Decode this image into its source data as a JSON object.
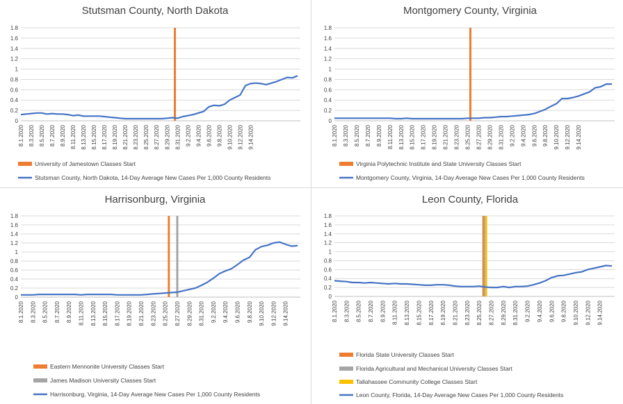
{
  "colors": {
    "line": "#4472C4",
    "orange": "#ED7D31",
    "gray": "#A5A5A5",
    "yellow": "#FFC000",
    "grid": "#d9d9d9"
  },
  "chart_data": [
    {
      "type": "line",
      "title": "Stutsman County, North Dakota",
      "ylim": [
        0,
        1.8
      ],
      "yticks": [
        "0",
        "0.2",
        "0.4",
        "0.6",
        "0.8",
        "1",
        "1.2",
        "1.4",
        "1.6",
        "1.8"
      ],
      "x_tick_labels": [
        "8.1.2020",
        "8.3.2020",
        "8.5.2020",
        "8.7.2020",
        "8.9.2020",
        "8.11.2020",
        "8.13.2020",
        "8.15.2020",
        "8.17.2020",
        "8.19.2020",
        "8.21.2020",
        "8.23.2020",
        "8.25.2020",
        "8.27.2020",
        "8.29.2020",
        "8.31.2020",
        "9.2.2020",
        "9.4.2020",
        "9.6.2020",
        "9.8.2020",
        "9.10.2020",
        "9.12.2020",
        "9.14.2020"
      ],
      "series": [
        {
          "name": "Stutsman County, North Dakota, 14-Day Average New Cases Per 1,000 County Residents",
          "values": [
            0.12,
            0.13,
            0.14,
            0.15,
            0.15,
            0.13,
            0.14,
            0.13,
            0.13,
            0.12,
            0.1,
            0.11,
            0.09,
            0.09,
            0.09,
            0.09,
            0.08,
            0.07,
            0.06,
            0.05,
            0.04,
            0.04,
            0.04,
            0.04,
            0.04,
            0.04,
            0.04,
            0.04,
            0.05,
            0.06,
            0.05,
            0.08,
            0.1,
            0.12,
            0.15,
            0.18,
            0.27,
            0.3,
            0.29,
            0.32,
            0.4,
            0.45,
            0.5,
            0.68,
            0.72,
            0.73,
            0.72,
            0.7,
            0.73,
            0.76,
            0.8,
            0.84,
            0.83,
            0.87
          ]
        }
      ],
      "events": [
        {
          "name": "University of Jamestown Classes Start",
          "x_index": 29.5,
          "color": "#ED7D31"
        }
      ]
    },
    {
      "type": "line",
      "title": "Montgomery County, Virginia",
      "ylim": [
        0,
        1.8
      ],
      "yticks": [
        "0",
        "0.2",
        "0.4",
        "0.6",
        "0.8",
        "1",
        "1.2",
        "1.4",
        "1.6",
        "1.8"
      ],
      "x_tick_labels": [
        "8.1.2020",
        "8.3.2020",
        "8.5.2020",
        "8.7.2020",
        "8.9.2020",
        "8.11.2020",
        "8.13.2020",
        "8.15.2020",
        "8.17.2020",
        "8.19.2020",
        "8.21.2020",
        "8.23.2020",
        "8.25.2020",
        "8.27.2020",
        "8.29.2020",
        "8.31.2020",
        "9.2.2020",
        "9.4.2020",
        "9.6.2020",
        "9.8.2020",
        "9.10.2020",
        "9.12.2020",
        "9.14.2020"
      ],
      "series": [
        {
          "name": "Montgomery County, Virginia, 14-Day Average New Cases Per 1,000 County Residents",
          "values": [
            0.05,
            0.05,
            0.05,
            0.05,
            0.05,
            0.05,
            0.05,
            0.05,
            0.05,
            0.05,
            0.05,
            0.04,
            0.04,
            0.05,
            0.04,
            0.04,
            0.04,
            0.04,
            0.04,
            0.04,
            0.04,
            0.04,
            0.04,
            0.04,
            0.05,
            0.05,
            0.05,
            0.06,
            0.06,
            0.07,
            0.08,
            0.08,
            0.09,
            0.1,
            0.11,
            0.12,
            0.14,
            0.18,
            0.22,
            0.28,
            0.33,
            0.43,
            0.43,
            0.45,
            0.48,
            0.52,
            0.56,
            0.64,
            0.66,
            0.71,
            0.71
          ]
        }
      ],
      "events": [
        {
          "name": "Virginia Polytechnic Institute and State University Classes Start",
          "x_index": 24.5,
          "color": "#ED7D31"
        }
      ]
    },
    {
      "type": "line",
      "title": "Harrisonburg, Virginia",
      "ylim": [
        0,
        1.8
      ],
      "yticks": [
        "0",
        "0.2",
        "0.4",
        "0.6",
        "0.8",
        "1",
        "1.2",
        "1.4",
        "1.6",
        "1.8"
      ],
      "x_tick_labels": [
        "8.1.2020",
        "8.3.2020",
        "8.5.2020",
        "8.7.2020",
        "8.9.2020",
        "8.11.2020",
        "8.13.2020",
        "8.15.2020",
        "8.17.2020",
        "8.19.2020",
        "8.21.2020",
        "8.23.2020",
        "8.25.2020",
        "8.27.2020",
        "8.29.2020",
        "8.31.2020",
        "9.2.2020",
        "9.4.2020",
        "9.6.2020",
        "9.8.2020",
        "9.10.2020",
        "9.12.2020",
        "9.14.2020"
      ],
      "series": [
        {
          "name": "Harrisonburg, Virginia, 14-Day Average New Cases Per 1,000 County Residents",
          "values": [
            0.05,
            0.05,
            0.05,
            0.06,
            0.06,
            0.06,
            0.06,
            0.06,
            0.06,
            0.06,
            0.05,
            0.06,
            0.06,
            0.06,
            0.06,
            0.06,
            0.05,
            0.05,
            0.05,
            0.05,
            0.05,
            0.06,
            0.07,
            0.08,
            0.09,
            0.1,
            0.11,
            0.14,
            0.17,
            0.2,
            0.26,
            0.33,
            0.42,
            0.52,
            0.58,
            0.63,
            0.72,
            0.82,
            0.88,
            1.05,
            1.12,
            1.15,
            1.2,
            1.22,
            1.17,
            1.13,
            1.14
          ]
        }
      ],
      "events": [
        {
          "name": "Eastern Mennonite University Classes Start",
          "x_index": 24.6,
          "color": "#ED7D31"
        },
        {
          "name": "James Madison University Classes Start",
          "x_index": 26.0,
          "color": "#A5A5A5"
        }
      ]
    },
    {
      "type": "line",
      "title": "Leon County, Florida",
      "ylim": [
        0,
        1.8
      ],
      "yticks": [
        "0",
        "0.2",
        "0.4",
        "0.6",
        "0.8",
        "1",
        "1.2",
        "1.4",
        "1.6",
        "1.8"
      ],
      "x_tick_labels": [
        "8.1.2020",
        "8.3.2020",
        "8.5.2020",
        "8.7.2020",
        "8.9.2020",
        "8.11.2020",
        "8.13.2020",
        "8.15.2020",
        "8.17.2020",
        "8.19.2020",
        "8.21.2020",
        "8.23.2020",
        "8.25.2020",
        "8.27.2020",
        "8.29.2020",
        "8.31.2020",
        "9.2.2020",
        "9.4.2020",
        "9.6.2020",
        "9.8.2020",
        "9.10.2020",
        "9.12.2020",
        "9.14.2020"
      ],
      "series": [
        {
          "name": "Leon County, Florida, 14-Day Average New Cases Per 1,000 County Residents",
          "values": [
            0.35,
            0.34,
            0.33,
            0.31,
            0.31,
            0.3,
            0.31,
            0.3,
            0.29,
            0.28,
            0.29,
            0.28,
            0.28,
            0.27,
            0.26,
            0.25,
            0.25,
            0.26,
            0.26,
            0.25,
            0.23,
            0.22,
            0.22,
            0.22,
            0.23,
            0.21,
            0.2,
            0.2,
            0.22,
            0.2,
            0.22,
            0.22,
            0.23,
            0.26,
            0.3,
            0.35,
            0.42,
            0.46,
            0.47,
            0.5,
            0.53,
            0.55,
            0.6,
            0.63,
            0.66,
            0.69,
            0.68
          ]
        }
      ],
      "events": [
        {
          "name": "Florida State University Classes Start",
          "x_index": 24.7,
          "color": "#ED7D31"
        },
        {
          "name": "Florida Agricultural and Mechanical University Classes Start",
          "x_index": 24.9,
          "color": "#A5A5A5"
        },
        {
          "name": "Tallahassee Community College Classes Start",
          "x_index": 25.15,
          "color": "#FFC000"
        }
      ]
    }
  ]
}
